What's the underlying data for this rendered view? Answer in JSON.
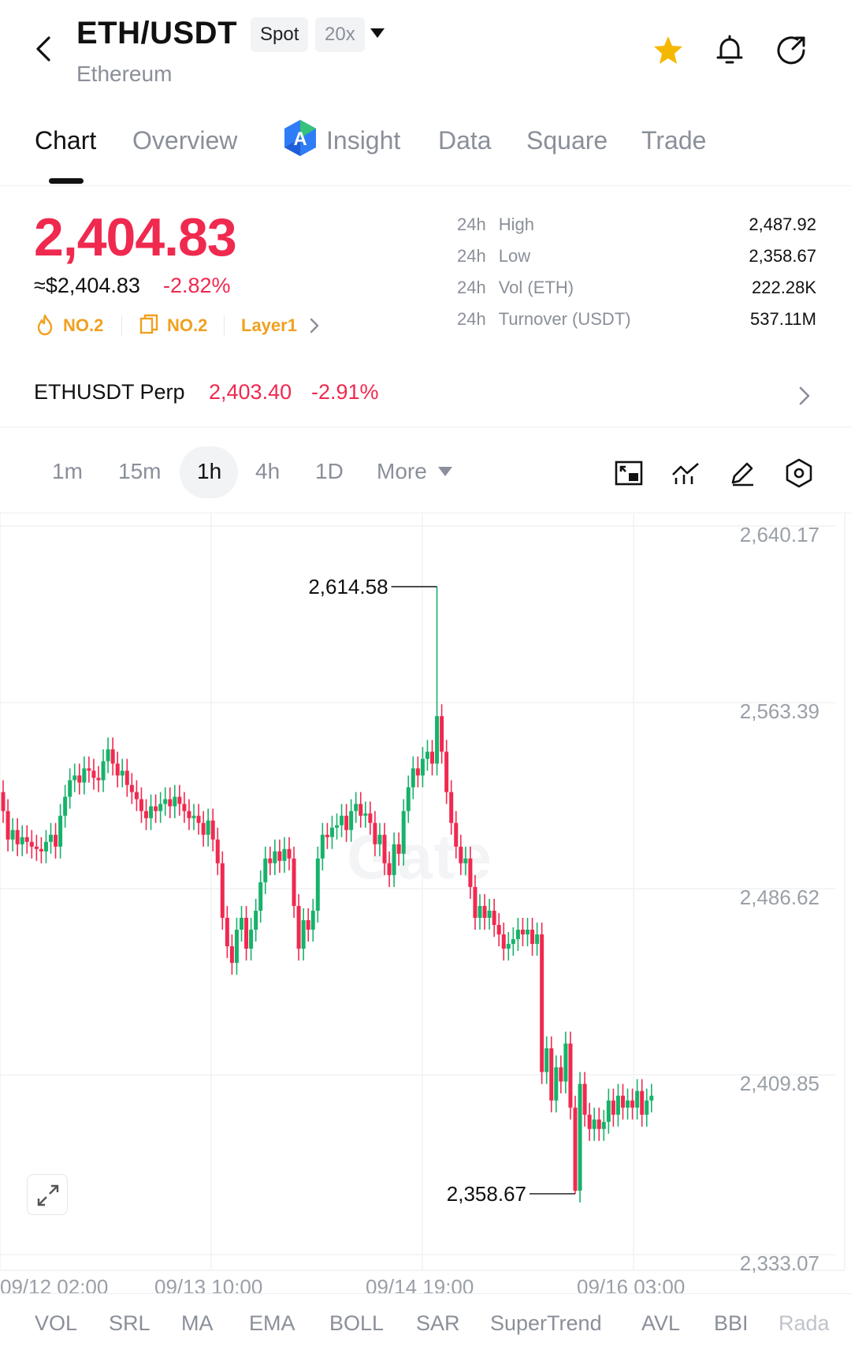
{
  "header": {
    "pair": "ETH/USDT",
    "name": "Ethereum",
    "spot_badge": "Spot",
    "leverage_badge": "20x"
  },
  "tabs": [
    "Chart",
    "Overview",
    "Insight",
    "Data",
    "Square",
    "Trade"
  ],
  "active_tab": "Chart",
  "price": {
    "last": "2,404.83",
    "approx": "≈$2,404.83",
    "change": "-2.82%",
    "ranks": [
      "NO.2",
      "NO.2",
      "Layer1"
    ]
  },
  "stats": [
    {
      "prefix": "24h",
      "label": "High",
      "value": "2,487.92"
    },
    {
      "prefix": "24h",
      "label": "Low",
      "value": "2,358.67"
    },
    {
      "prefix": "24h",
      "label": "Vol (ETH)",
      "value": "222.28K"
    },
    {
      "prefix": "24h",
      "label": "Turnover (USDT)",
      "value": "537.11M"
    }
  ],
  "perp": {
    "name": "ETHUSDT Perp",
    "price": "2,403.40",
    "change": "-2.91%"
  },
  "intervals": [
    "1m",
    "15m",
    "1h",
    "4h",
    "1D",
    "More"
  ],
  "active_interval": "1h",
  "watermark": "Gate",
  "indicators": [
    "VOL",
    "SRL",
    "MA",
    "EMA",
    "BOLL",
    "SAR",
    "SuperTrend",
    "AVL",
    "BBI",
    "Rada"
  ],
  "colors": {
    "up": "#17b26a",
    "down": "#f0294f",
    "accent_star": "#f5b800",
    "rank": "#f0a020"
  },
  "chart_data": {
    "type": "candlestick",
    "y_ticks": [
      "2,640.17",
      "2,563.39",
      "2,486.62",
      "2,409.85",
      "2,333.07"
    ],
    "x_ticks": [
      "09/12 02:00",
      "09/13 10:00",
      "09/14 19:00",
      "09/16 03:00"
    ],
    "ylim": [
      2333.07,
      2640.17
    ],
    "annotations": [
      {
        "label": "2,614.58",
        "value": 2614.58,
        "type": "high"
      },
      {
        "label": "2,358.67",
        "value": 2358.67,
        "type": "low"
      }
    ],
    "closes": [
      2520,
      2508,
      2512,
      2506,
      2509,
      2507,
      2505,
      2504,
      2503,
      2507,
      2510,
      2505,
      2518,
      2526,
      2533,
      2535,
      2532,
      2538,
      2537,
      2534,
      2533,
      2541,
      2546,
      2540,
      2535,
      2537,
      2531,
      2528,
      2525,
      2520,
      2517,
      2522,
      2520,
      2523,
      2525,
      2522,
      2526,
      2523,
      2520,
      2517,
      2518,
      2515,
      2510,
      2516,
      2508,
      2498,
      2475,
      2463,
      2456,
      2470,
      2475,
      2462,
      2470,
      2478,
      2490,
      2500,
      2498,
      2503,
      2499,
      2504,
      2500,
      2480,
      2462,
      2474,
      2470,
      2478,
      2500,
      2510,
      2509,
      2513,
      2514,
      2518,
      2512,
      2520,
      2523,
      2518,
      2519,
      2515,
      2506,
      2510,
      2498,
      2493,
      2506,
      2502,
      2520,
      2530,
      2538,
      2535,
      2542,
      2545,
      2540,
      2560,
      2545,
      2528,
      2515,
      2505,
      2498,
      2500,
      2488,
      2475,
      2480,
      2475,
      2478,
      2472,
      2468,
      2462,
      2464,
      2466,
      2470,
      2468,
      2470,
      2464,
      2468,
      2410,
      2420,
      2398,
      2412,
      2406,
      2422,
      2395,
      2360,
      2405,
      2392,
      2386,
      2390,
      2386,
      2389,
      2398,
      2392,
      2400,
      2395,
      2398,
      2395,
      2402,
      2392,
      2398,
      2400
    ]
  }
}
